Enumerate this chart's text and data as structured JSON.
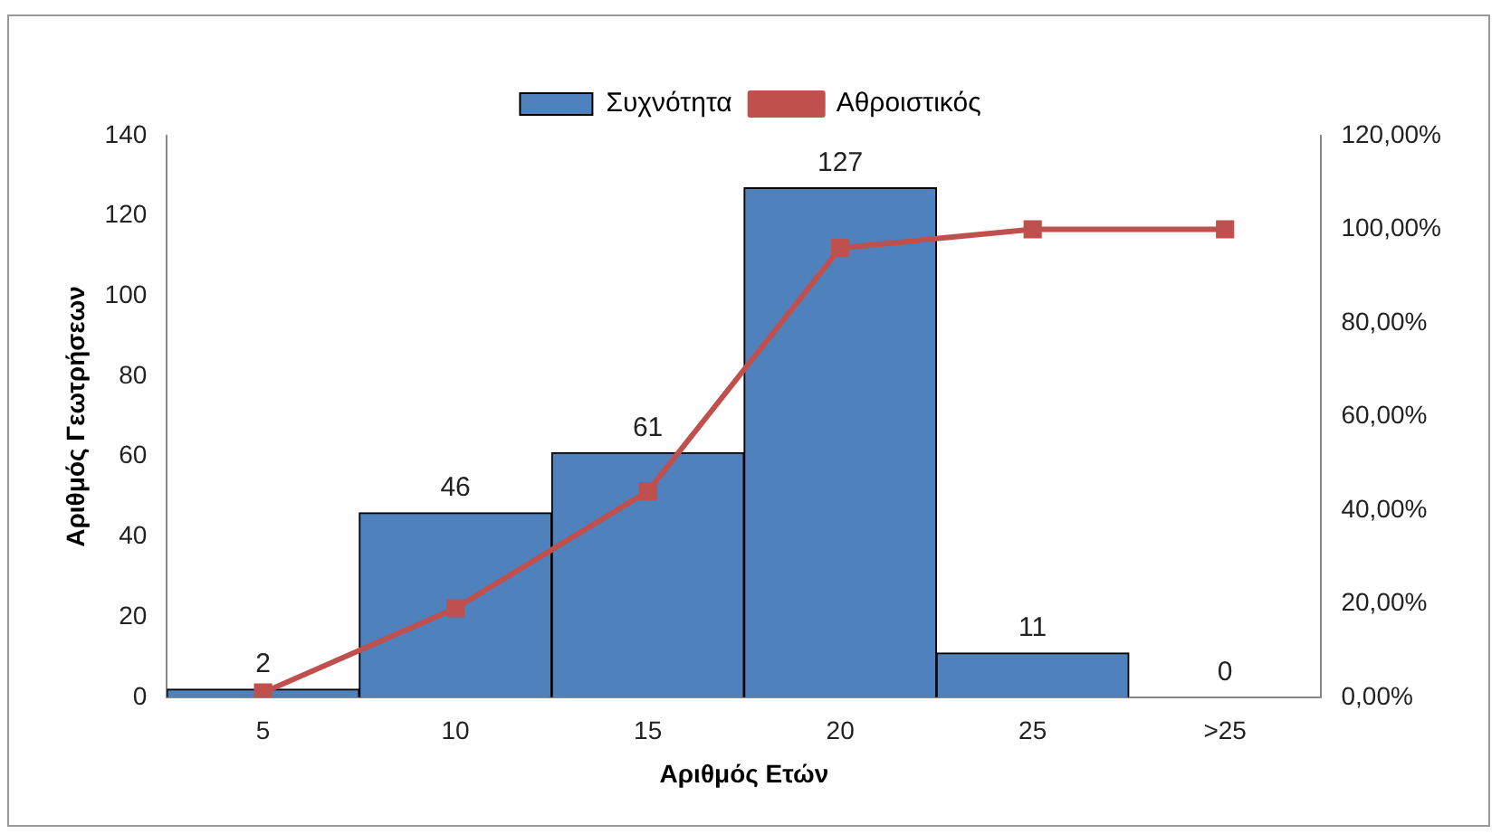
{
  "chart_data": {
    "type": "bar",
    "xlabel": "Αριθμός Ετών",
    "ylabel": "Αριθμός Γεωτρήσεων",
    "categories": [
      "5",
      "10",
      "15",
      "20",
      "25",
      ">25"
    ],
    "series": [
      {
        "name": "Συχνότητα",
        "color": "#4f81bd",
        "values": [
          2,
          46,
          61,
          127,
          11,
          0
        ],
        "value_labels": [
          "2",
          "46",
          "61",
          "127",
          "11",
          "0"
        ]
      },
      {
        "name": "Αθροιστικός",
        "type": "line",
        "axis": "y2",
        "color": "#c0504d",
        "marker": "square",
        "values": [
          1,
          19,
          44,
          96,
          100,
          100
        ]
      }
    ],
    "ylim": [
      0,
      140
    ],
    "yticks": [
      0,
      20,
      40,
      60,
      80,
      100,
      120,
      140
    ],
    "y2lim": [
      0,
      120
    ],
    "y2ticks": [
      {
        "value": 0,
        "label": "0,00%"
      },
      {
        "value": 20,
        "label": "20,00%"
      },
      {
        "value": 40,
        "label": "40,00%"
      },
      {
        "value": 60,
        "label": "60,00%"
      },
      {
        "value": 80,
        "label": "80,00%"
      },
      {
        "value": 100,
        "label": "100,00%"
      },
      {
        "value": 120,
        "label": "120,00%"
      }
    ],
    "grid": false,
    "legend": "top"
  }
}
